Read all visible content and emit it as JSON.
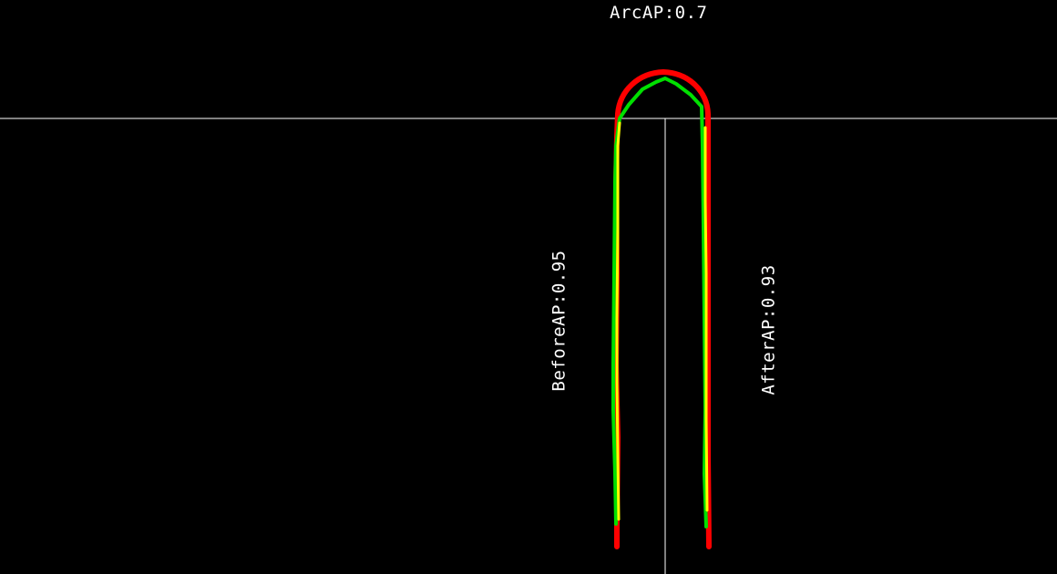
{
  "labels": {
    "arc": "ArcAP:0.7",
    "before": "BeforeAP:0.95",
    "after": "AfterAP:0.93"
  },
  "colors": {
    "background": "#000000",
    "guide_lines": "#ffffff",
    "ground_truth_curve": "#ff0000",
    "prediction_curve_a": "#00e000",
    "prediction_curve_b": "#ffff00",
    "text": "#ffffff"
  }
}
